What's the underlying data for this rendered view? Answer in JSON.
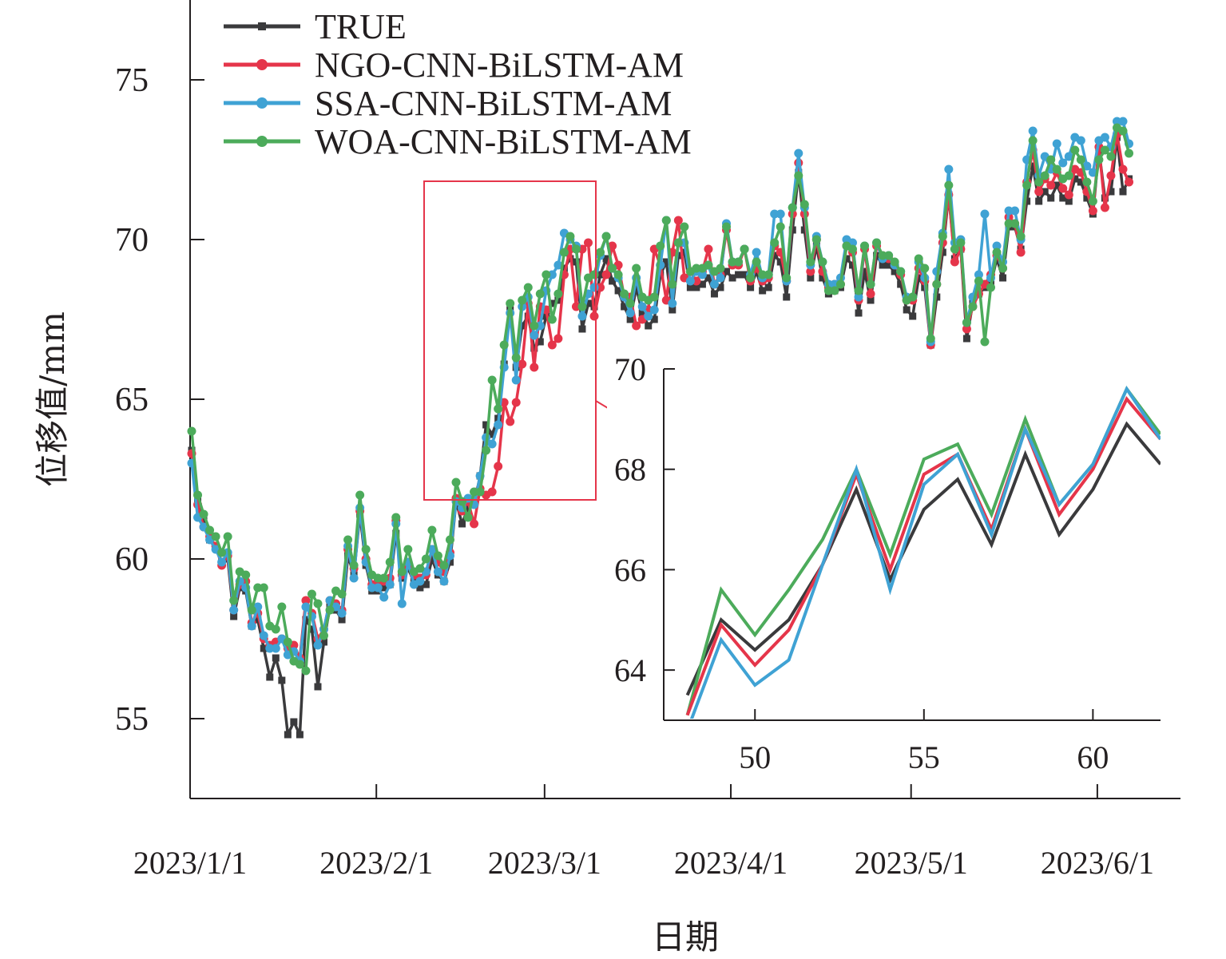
{
  "chart_data": [
    {
      "type": "line",
      "name": "main",
      "xlabel": "日期",
      "ylabel": "位移值/mm",
      "ylim": [
        52.5,
        77.5
      ],
      "yticks": [
        55,
        60,
        65,
        70,
        75
      ],
      "xticks": [
        "2023/1/1",
        "2023/2/1",
        "2023/3/1",
        "2023/4/1",
        "2023/5/1",
        "2023/6/1"
      ],
      "x_dates": [
        "2023/1/1",
        "2023/1/2",
        "2023/1/3",
        "2023/1/4",
        "2023/1/5",
        "2023/1/6",
        "2023/1/7",
        "2023/1/8",
        "2023/1/9",
        "2023/1/10",
        "2023/1/11",
        "2023/1/12",
        "2023/1/13",
        "2023/1/14",
        "2023/1/15",
        "2023/1/16",
        "2023/1/17",
        "2023/1/18",
        "2023/1/19",
        "2023/1/20",
        "2023/1/21",
        "2023/1/22",
        "2023/1/23",
        "2023/1/24",
        "2023/1/25",
        "2023/1/26",
        "2023/1/27",
        "2023/1/28",
        "2023/1/29",
        "2023/1/30",
        "2023/1/31",
        "2023/2/1",
        "2023/2/2",
        "2023/2/3",
        "2023/2/4",
        "2023/2/5",
        "2023/2/6",
        "2023/2/7",
        "2023/2/8",
        "2023/2/9",
        "2023/2/10",
        "2023/2/11",
        "2023/2/12",
        "2023/2/13",
        "2023/2/14",
        "2023/2/15",
        "2023/2/16",
        "2023/2/17",
        "2023/2/18",
        "2023/2/19",
        "2023/2/20",
        "2023/2/21",
        "2023/2/22",
        "2023/2/23",
        "2023/2/24",
        "2023/2/25",
        "2023/2/26",
        "2023/2/27",
        "2023/2/28",
        "2023/3/1",
        "2023/3/2",
        "2023/3/3",
        "2023/3/4",
        "2023/3/5",
        "2023/3/6",
        "2023/3/7",
        "2023/3/8",
        "2023/3/9",
        "2023/3/10",
        "2023/3/11",
        "2023/3/12",
        "2023/3/13",
        "2023/3/14",
        "2023/3/15",
        "2023/3/16",
        "2023/3/17",
        "2023/3/18",
        "2023/3/19",
        "2023/3/20",
        "2023/3/21",
        "2023/3/22",
        "2023/3/23",
        "2023/3/24",
        "2023/3/25",
        "2023/3/26",
        "2023/3/27",
        "2023/3/28",
        "2023/3/29",
        "2023/3/30",
        "2023/3/31",
        "2023/4/1",
        "2023/4/2",
        "2023/4/3",
        "2023/4/4",
        "2023/4/5",
        "2023/4/6",
        "2023/4/7",
        "2023/4/8",
        "2023/4/9",
        "2023/4/10",
        "2023/4/11",
        "2023/4/12",
        "2023/4/13",
        "2023/4/14",
        "2023/4/15",
        "2023/4/16",
        "2023/4/17",
        "2023/4/18",
        "2023/4/19",
        "2023/4/20",
        "2023/4/21",
        "2023/4/22",
        "2023/4/23",
        "2023/4/24",
        "2023/4/25",
        "2023/4/26",
        "2023/4/27",
        "2023/4/28",
        "2023/4/29",
        "2023/4/30",
        "2023/5/1",
        "2023/5/2",
        "2023/5/3",
        "2023/5/4",
        "2023/5/5",
        "2023/5/6",
        "2023/5/7",
        "2023/5/8",
        "2023/5/9",
        "2023/5/10",
        "2023/5/11",
        "2023/5/12",
        "2023/5/13",
        "2023/5/14",
        "2023/5/15",
        "2023/5/16",
        "2023/5/17",
        "2023/5/18",
        "2023/5/19",
        "2023/5/20",
        "2023/5/21",
        "2023/5/22",
        "2023/5/23",
        "2023/5/24",
        "2023/5/25",
        "2023/5/26",
        "2023/5/27",
        "2023/5/28",
        "2023/5/29",
        "2023/5/30",
        "2023/5/31",
        "2023/6/1",
        "2023/6/2",
        "2023/6/3",
        "2023/6/4",
        "2023/6/5",
        "2023/6/6",
        "2023/6/7"
      ],
      "series": [
        {
          "name": "TRUE",
          "color": "#3a3a3c",
          "marker": "square",
          "values": [
            63.4,
            61.8,
            61.2,
            60.6,
            60.4,
            59.9,
            60.0,
            58.2,
            59.1,
            59.0,
            57.9,
            58.1,
            57.2,
            56.3,
            56.9,
            56.2,
            54.5,
            54.9,
            54.5,
            58.1,
            57.8,
            56.0,
            57.4,
            58.5,
            58.4,
            58.1,
            60.1,
            59.5,
            61.4,
            59.8,
            59.0,
            59.0,
            59.1,
            59.2,
            60.8,
            59.4,
            59.7,
            59.3,
            59.1,
            59.2,
            60.0,
            59.5,
            59.3,
            59.9,
            61.8,
            61.1,
            61.6,
            61.7,
            62.6,
            64.2,
            63.9,
            64.4,
            66.1,
            67.8,
            66.0,
            67.3,
            67.6,
            66.6,
            66.8,
            67.6,
            68.0,
            68.1,
            69.1,
            69.4,
            69.3,
            67.2,
            68.0,
            67.9,
            68.9,
            69.4,
            68.7,
            68.4,
            67.9,
            67.5,
            68.5,
            67.7,
            67.3,
            67.5,
            68.9,
            69.3,
            67.8,
            69.5,
            69.6,
            68.5,
            68.5,
            68.6,
            68.8,
            68.3,
            68.5,
            69.0,
            68.8,
            68.9,
            68.9,
            68.5,
            69.0,
            68.4,
            68.5,
            69.5,
            69.3,
            68.2,
            70.3,
            72.1,
            70.3,
            68.8,
            69.8,
            68.8,
            68.3,
            68.4,
            68.5,
            69.4,
            69.2,
            67.7,
            69.0,
            68.1,
            69.5,
            69.2,
            69.2,
            69.0,
            68.6,
            67.8,
            67.6,
            68.8,
            68.5,
            66.7,
            68.2,
            69.6,
            71.4,
            69.4,
            69.7,
            66.9,
            68.0,
            68.3,
            68.5,
            68.6,
            69.4,
            68.8,
            70.4,
            70.4,
            69.7,
            71.2,
            72.3,
            71.2,
            71.5,
            71.3,
            71.7,
            71.3,
            71.2,
            71.9,
            71.8,
            71.3,
            70.8,
            72.8,
            71.3,
            71.5,
            73.2,
            71.5,
            71.9
          ]
        },
        {
          "name": "NGO-CNN-BiLSTM-AM",
          "color": "#e5354a",
          "marker": "circle",
          "values": [
            63.3,
            61.7,
            61.0,
            60.7,
            60.4,
            59.8,
            60.1,
            58.4,
            59.2,
            59.3,
            58.0,
            58.3,
            57.5,
            57.3,
            57.4,
            57.5,
            57.2,
            57.3,
            56.9,
            58.7,
            58.3,
            57.5,
            57.8,
            58.7,
            58.6,
            58.4,
            60.3,
            59.7,
            61.5,
            60.0,
            59.2,
            59.3,
            59.3,
            59.4,
            61.2,
            59.5,
            59.9,
            59.5,
            59.4,
            59.5,
            60.3,
            59.9,
            59.6,
            60.2,
            61.9,
            61.5,
            61.8,
            61.1,
            62.2,
            62.0,
            62.1,
            62.9,
            64.9,
            64.3,
            64.9,
            66.1,
            68.0,
            66.0,
            67.9,
            67.8,
            66.7,
            66.9,
            68.9,
            69.7,
            67.9,
            69.7,
            69.9,
            67.6,
            68.5,
            68.9,
            69.8,
            69.2,
            68.2,
            68.2,
            67.3,
            67.5,
            67.8,
            69.7,
            69.2,
            68.1,
            69.6,
            70.6,
            68.8,
            69.0,
            68.7,
            69.0,
            69.7,
            68.6,
            68.9,
            70.3,
            69.2,
            69.2,
            69.7,
            68.7,
            69.1,
            68.7,
            68.8,
            69.8,
            69.6,
            68.7,
            70.8,
            72.4,
            70.8,
            69.0,
            70.0,
            69.0,
            68.5,
            68.6,
            68.6,
            69.8,
            69.6,
            68.1,
            69.7,
            68.3,
            69.8,
            69.5,
            69.4,
            69.2,
            68.9,
            68.1,
            68.1,
            69.1,
            68.7,
            66.7,
            68.6,
            69.9,
            71.4,
            69.3,
            69.7,
            67.2,
            67.9,
            68.3,
            68.6,
            68.9,
            69.5,
            69.1,
            70.7,
            70.5,
            69.6,
            71.8,
            72.8,
            71.5,
            71.9,
            71.7,
            72.1,
            71.6,
            71.4,
            72.2,
            72.1,
            71.5,
            70.9,
            72.9,
            71.0,
            72.0,
            73.3,
            72.2,
            71.8
          ]
        },
        {
          "name": "SSA-CNN-BiLSTM-AM",
          "color": "#3fa2d4",
          "marker": "circle",
          "values": [
            63.0,
            61.3,
            61.0,
            60.6,
            60.3,
            59.9,
            60.2,
            58.4,
            59.3,
            59.1,
            57.9,
            58.5,
            57.6,
            57.2,
            57.2,
            57.5,
            57.0,
            57.1,
            56.8,
            58.5,
            58.2,
            57.3,
            57.8,
            58.7,
            58.5,
            58.3,
            60.4,
            59.4,
            61.6,
            59.9,
            59.1,
            59.1,
            58.8,
            59.2,
            61.1,
            58.6,
            59.9,
            59.2,
            59.3,
            59.6,
            60.3,
            59.6,
            59.3,
            60.1,
            61.8,
            61.6,
            61.9,
            61.7,
            62.6,
            63.8,
            63.6,
            64.2,
            66.0,
            67.7,
            65.6,
            67.9,
            68.2,
            67.0,
            67.3,
            68.4,
            68.9,
            69.2,
            70.2,
            70.0,
            69.8,
            67.6,
            68.3,
            68.5,
            69.5,
            70.1,
            69.1,
            68.8,
            68.2,
            67.7,
            68.8,
            67.9,
            67.6,
            67.8,
            69.2,
            70.6,
            68.0,
            69.9,
            69.9,
            68.7,
            69.0,
            68.9,
            69.2,
            68.6,
            68.8,
            70.5,
            69.3,
            69.3,
            69.7,
            68.9,
            69.6,
            68.8,
            68.9,
            70.8,
            70.8,
            68.7,
            71.0,
            72.7,
            71.0,
            69.2,
            70.1,
            69.3,
            68.6,
            68.6,
            68.8,
            70.0,
            69.9,
            68.2,
            69.8,
            68.6,
            69.9,
            69.4,
            69.5,
            69.2,
            69.0,
            68.2,
            68.2,
            69.3,
            68.8,
            66.8,
            69.0,
            70.2,
            72.2,
            69.9,
            70.0,
            67.4,
            68.2,
            68.9,
            70.8,
            68.8,
            69.8,
            69.3,
            70.9,
            70.9,
            70.0,
            72.5,
            73.4,
            72.0,
            72.6,
            72.2,
            73.0,
            72.4,
            72.6,
            73.2,
            73.1,
            72.3,
            72.1,
            73.1,
            73.2,
            72.9,
            73.7,
            73.7,
            73.0
          ]
        },
        {
          "name": "WOA-CNN-BiLSTM-AM",
          "color": "#4cab5b",
          "marker": "circle",
          "values": [
            64.0,
            62.0,
            61.4,
            60.9,
            60.7,
            60.2,
            60.7,
            58.7,
            59.6,
            59.5,
            58.4,
            59.1,
            59.1,
            57.9,
            57.8,
            58.5,
            57.4,
            56.8,
            56.7,
            56.5,
            58.9,
            58.6,
            57.6,
            58.4,
            59.0,
            58.9,
            60.6,
            59.8,
            62.0,
            60.3,
            59.5,
            59.4,
            59.4,
            59.9,
            61.3,
            59.6,
            60.3,
            59.6,
            59.7,
            60.0,
            60.9,
            60.1,
            59.8,
            60.6,
            62.4,
            61.8,
            61.3,
            62.1,
            62.1,
            63.4,
            65.6,
            64.7,
            66.7,
            68.0,
            66.3,
            68.1,
            68.5,
            67.3,
            68.3,
            68.9,
            67.5,
            68.3,
            69.6,
            70.1,
            69.7,
            67.9,
            68.8,
            68.9,
            69.6,
            70.1,
            69.1,
            68.9,
            68.3,
            68.0,
            69.1,
            68.2,
            68.1,
            68.2,
            69.8,
            70.6,
            68.6,
            69.9,
            70.4,
            69.0,
            69.1,
            69.1,
            69.2,
            69.0,
            69.1,
            70.4,
            69.3,
            69.3,
            69.7,
            68.8,
            69.3,
            68.9,
            68.9,
            69.9,
            70.4,
            68.8,
            71.0,
            72.0,
            71.1,
            69.3,
            70.0,
            69.3,
            68.4,
            68.4,
            68.6,
            69.8,
            69.7,
            68.4,
            69.8,
            68.6,
            69.9,
            69.5,
            69.5,
            69.3,
            69.0,
            68.1,
            68.2,
            69.4,
            69.1,
            66.9,
            68.6,
            70.1,
            71.7,
            69.7,
            69.9,
            67.4,
            67.9,
            68.7,
            66.8,
            68.5,
            69.6,
            69.1,
            70.5,
            70.5,
            70.1,
            71.7,
            73.1,
            71.8,
            72.0,
            72.5,
            72.2,
            71.9,
            72.0,
            72.8,
            72.5,
            71.8,
            71.2,
            72.5,
            72.8,
            72.6,
            73.5,
            73.4,
            72.7
          ]
        }
      ]
    },
    {
      "type": "line",
      "name": "inset",
      "xlim": [
        47.3,
        62
      ],
      "ylim": [
        63,
        70
      ],
      "xticks": [
        50,
        55,
        60
      ],
      "yticks": [
        64,
        66,
        68,
        70
      ],
      "x": [
        48,
        49,
        50,
        51,
        52,
        53,
        54,
        55,
        56,
        57,
        58,
        59,
        60,
        61,
        62
      ],
      "series": [
        {
          "name": "TRUE",
          "color": "#3a3a3c",
          "values": [
            63.5,
            65.0,
            64.4,
            65.0,
            66.1,
            67.6,
            65.8,
            67.2,
            67.8,
            66.5,
            68.3,
            66.7,
            67.6,
            68.9,
            68.1
          ]
        },
        {
          "name": "NGO-CNN-BiLSTM-AM",
          "color": "#e5354a",
          "values": [
            63.1,
            64.9,
            64.1,
            64.8,
            66.1,
            67.9,
            66.0,
            67.9,
            68.3,
            66.8,
            68.8,
            67.1,
            68.0,
            69.4,
            68.6
          ]
        },
        {
          "name": "SSA-CNN-BiLSTM-AM",
          "color": "#3fa2d4",
          "values": [
            62.8,
            64.6,
            63.7,
            64.2,
            66.1,
            68.0,
            65.6,
            67.7,
            68.3,
            66.7,
            68.8,
            67.3,
            68.1,
            69.6,
            68.6
          ]
        },
        {
          "name": "WOA-CNN-BiLSTM-AM",
          "color": "#4cab5b",
          "values": [
            63.1,
            65.6,
            64.7,
            65.6,
            66.6,
            68.0,
            66.3,
            68.2,
            68.5,
            67.1,
            69.0,
            67.3,
            68.1,
            69.6,
            68.7
          ]
        }
      ]
    }
  ]
}
